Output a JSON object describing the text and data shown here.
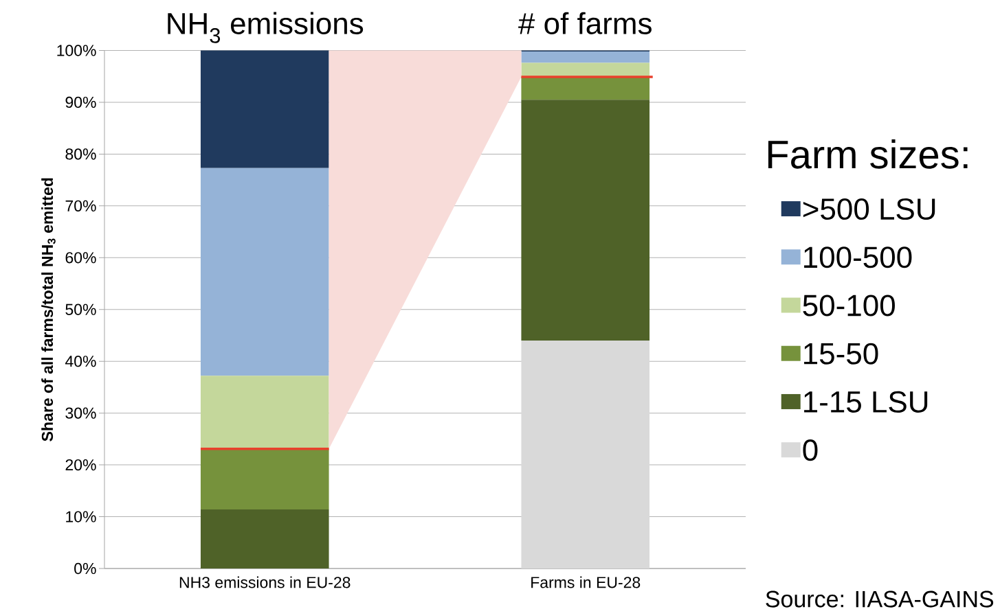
{
  "chart_data": {
    "type": "bar",
    "stacked": true,
    "categories": [
      "NH3 emissions in EU-28",
      "Farms in EU-28"
    ],
    "ylabel": "Share of all farms/total NH$_{3}$ emitted",
    "legend_title": "Farm sizes:",
    "series": [
      {
        "name": "0",
        "color": "#d9d9d9",
        "values": [
          0,
          44.0
        ]
      },
      {
        "name": "1-15 LSU",
        "color": "#4f6228",
        "values": [
          11.4,
          46.5
        ]
      },
      {
        "name": "15-50",
        "color": "#76923c",
        "values": [
          11.7,
          4.4
        ]
      },
      {
        "name": "50-100",
        "color": "#c4d79b",
        "values": [
          14.1,
          2.7
        ]
      },
      {
        "name": "100-500",
        "color": "#95b3d7",
        "values": [
          40.1,
          2.2
        ]
      },
      {
        "name": ">500 LSU",
        "color": "#203a5e",
        "values": [
          22.7,
          0.2
        ]
      }
    ],
    "ylim": [
      0,
      100
    ],
    "yticks": [
      {
        "value": 0,
        "label": "0%"
      },
      {
        "value": 10,
        "label": "10%"
      },
      {
        "value": 20,
        "label": "20%"
      },
      {
        "value": 30,
        "label": "30%"
      },
      {
        "value": 40,
        "label": "40%"
      },
      {
        "value": 50,
        "label": "50%"
      },
      {
        "value": 60,
        "label": "60%"
      },
      {
        "value": 70,
        "label": "70%"
      },
      {
        "value": 80,
        "label": "80%"
      },
      {
        "value": 90,
        "label": "90%"
      },
      {
        "value": 100,
        "label": "100%"
      }
    ],
    "grid": "y",
    "legend": "right",
    "annotations": [
      "NH$_{3}$ emissions",
      "# of farms",
      "Source: IIASA-GAINS"
    ]
  }
}
